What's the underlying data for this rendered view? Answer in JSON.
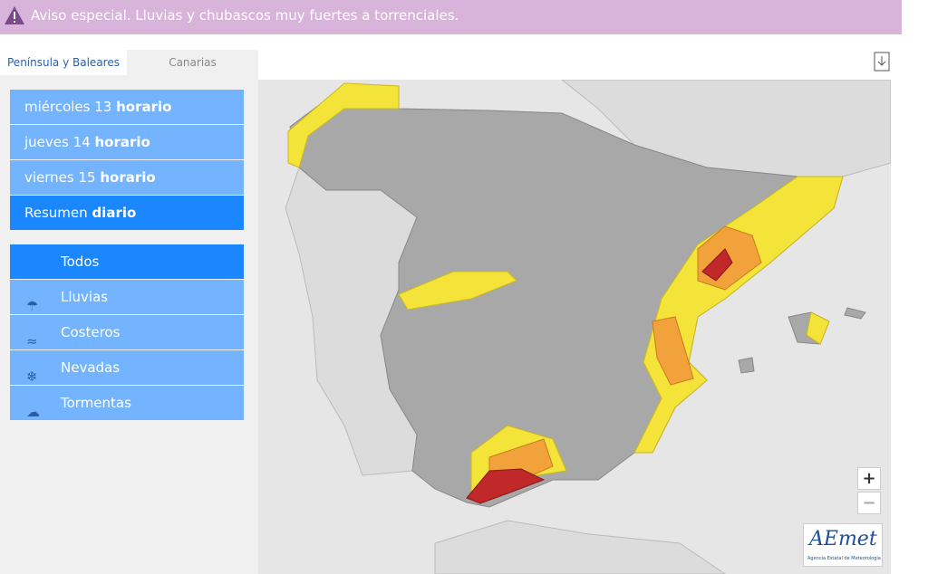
{
  "banner": {
    "text": "Aviso especial. Lluvias y chubascos muy fuertes a torrenciales."
  },
  "tabs": [
    "Península y Baleares",
    "Canarias"
  ],
  "days": [
    {
      "label": "miércoles 13",
      "mode": "horario"
    },
    {
      "label": "jueves 14",
      "mode": "horario"
    },
    {
      "label": "viernes 15",
      "mode": "horario"
    },
    {
      "label": "Resumen",
      "mode": "diario"
    }
  ],
  "filters": [
    "Todos",
    "Lluvias",
    "Costeros",
    "Nevadas",
    "Tormentas"
  ],
  "zoom": [
    "+",
    "−"
  ],
  "logo": {
    "name": "AEmet",
    "subtitle": "Agencia Estatal de Meteorología"
  }
}
